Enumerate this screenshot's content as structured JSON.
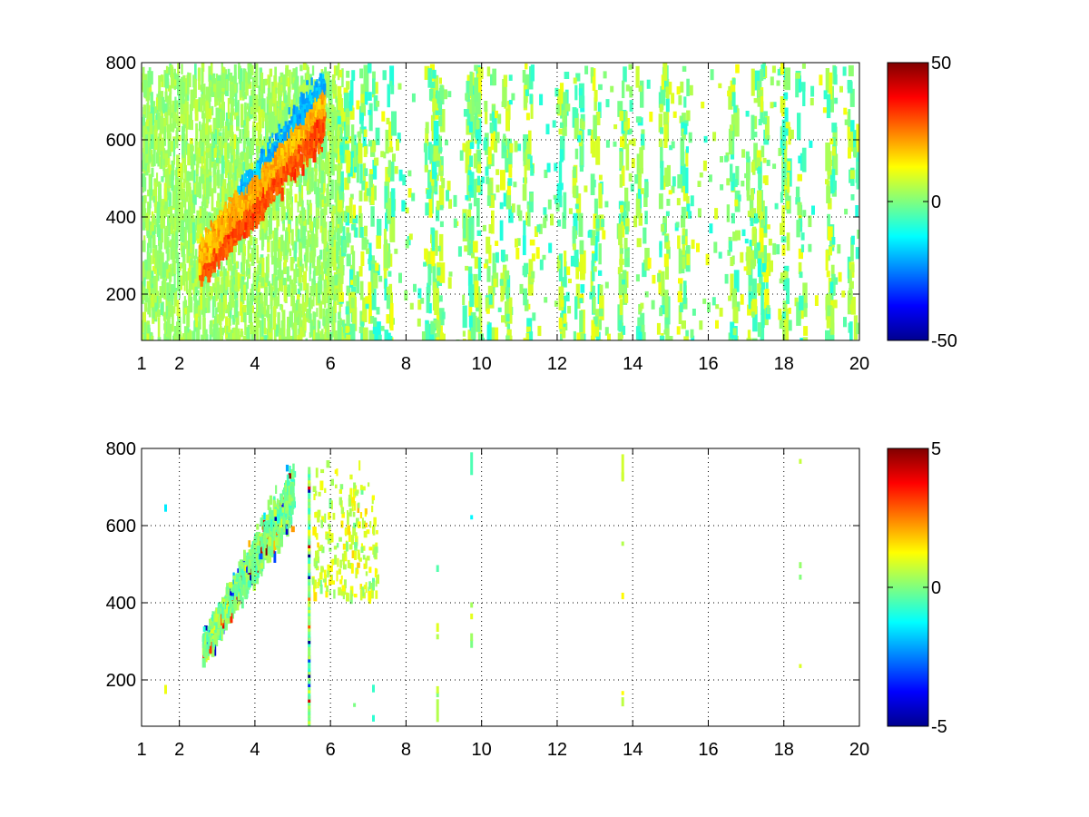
{
  "chart_data": [
    {
      "type": "heatmap",
      "title": "",
      "xlabel": "",
      "ylabel": "",
      "xlim": [
        1,
        20
      ],
      "ylim": [
        80,
        800
      ],
      "xticks": [
        1,
        2,
        4,
        6,
        8,
        10,
        12,
        14,
        16,
        18,
        20
      ],
      "yticks": [
        200,
        400,
        600,
        800
      ],
      "grid": true,
      "colormap": "jet",
      "colorbar": {
        "min": -50,
        "max": 50,
        "ticks": [
          50,
          0,
          -50
        ]
      },
      "features": {
        "diagonal_band": {
          "x": [
            2.5,
            5.8
          ],
          "y": [
            290,
            700
          ],
          "value": 20,
          "lower_edge_value": 30,
          "upper_edge_value": -20
        },
        "dense_noise_x_range": [
          1,
          6.3
        ],
        "sparse_columns_x": [
          6.3,
          6.5,
          6.8,
          7.1,
          7.5,
          8.6,
          8.8,
          9.6,
          9.8,
          10.2,
          10.6,
          11.2,
          12.1,
          12.5,
          13.0,
          13.7,
          14.2,
          14.8,
          15.3,
          16.6,
          17.1,
          17.4,
          18.0,
          18.4,
          19.2,
          19.8
        ],
        "sparse_value_range": [
          -10,
          12
        ]
      }
    },
    {
      "type": "heatmap",
      "title": "",
      "xlabel": "",
      "ylabel": "",
      "xlim": [
        1,
        20
      ],
      "ylim": [
        80,
        800
      ],
      "xticks": [
        1,
        2,
        4,
        6,
        8,
        10,
        12,
        14,
        16,
        18,
        20
      ],
      "yticks": [
        200,
        400,
        600,
        800
      ],
      "grid": true,
      "colormap": "jet",
      "colorbar": {
        "min": -5,
        "max": 5,
        "ticks": [
          5,
          0,
          -5
        ]
      },
      "features": {
        "diagonal_band": {
          "x": [
            2.6,
            5.0
          ],
          "y": [
            290,
            700
          ],
          "value_range": [
            -5,
            5
          ]
        },
        "vertical_line": {
          "x": 5.4,
          "y": [
            80,
            750
          ]
        },
        "sparse_spots_x": [
          1.6,
          6.6,
          6.8,
          7.1,
          8.8,
          9.7,
          13.7,
          18.4
        ]
      }
    }
  ]
}
